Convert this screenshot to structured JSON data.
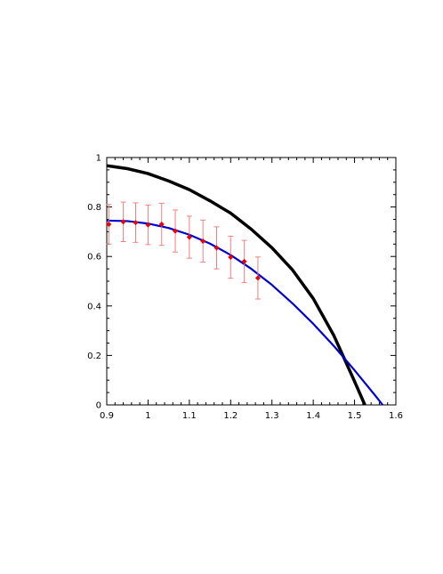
{
  "chart_data": {
    "type": "line",
    "title": "",
    "xlabel": "",
    "ylabel": "",
    "xlim": [
      0.9,
      1.6
    ],
    "ylim": [
      0,
      1
    ],
    "grid": false,
    "x_ticks": [
      "0.9",
      "1",
      "1.1",
      "1.2",
      "1.3",
      "1.4",
      "1.5",
      "1.6"
    ],
    "y_ticks": [
      "0",
      "0.2",
      "0.4",
      "0.6",
      "0.8",
      "1"
    ],
    "series": [
      {
        "type": "line",
        "color": "#000000",
        "x": [
          0.9,
          0.95,
          1.0,
          1.05,
          1.1,
          1.15,
          1.2,
          1.25,
          1.3,
          1.35,
          1.4,
          1.45,
          1.5,
          1.525
        ],
        "y": [
          0.967,
          0.955,
          0.935,
          0.905,
          0.87,
          0.825,
          0.775,
          0.71,
          0.635,
          0.545,
          0.43,
          0.28,
          0.095,
          0.0
        ]
      },
      {
        "type": "line",
        "color": "#0000cc",
        "x": [
          0.9,
          0.95,
          1.0,
          1.05,
          1.1,
          1.15,
          1.2,
          1.25,
          1.3,
          1.35,
          1.4,
          1.45,
          1.5,
          1.55,
          1.568
        ],
        "y": [
          0.745,
          0.743,
          0.733,
          0.715,
          0.688,
          0.652,
          0.606,
          0.55,
          0.485,
          0.41,
          0.328,
          0.238,
          0.14,
          0.038,
          0.0
        ]
      },
      {
        "type": "scatter",
        "color": "#ee0000",
        "error_color": "#f08080",
        "x": [
          0.905,
          0.94,
          0.97,
          1.0,
          1.033,
          1.066,
          1.1,
          1.133,
          1.166,
          1.2,
          1.233,
          1.266
        ],
        "y": [
          0.73,
          0.74,
          0.737,
          0.728,
          0.73,
          0.703,
          0.678,
          0.662,
          0.635,
          0.597,
          0.58,
          0.513
        ],
        "yerr": [
          0.08,
          0.08,
          0.08,
          0.08,
          0.085,
          0.085,
          0.085,
          0.085,
          0.085,
          0.085,
          0.085,
          0.085
        ]
      }
    ]
  }
}
